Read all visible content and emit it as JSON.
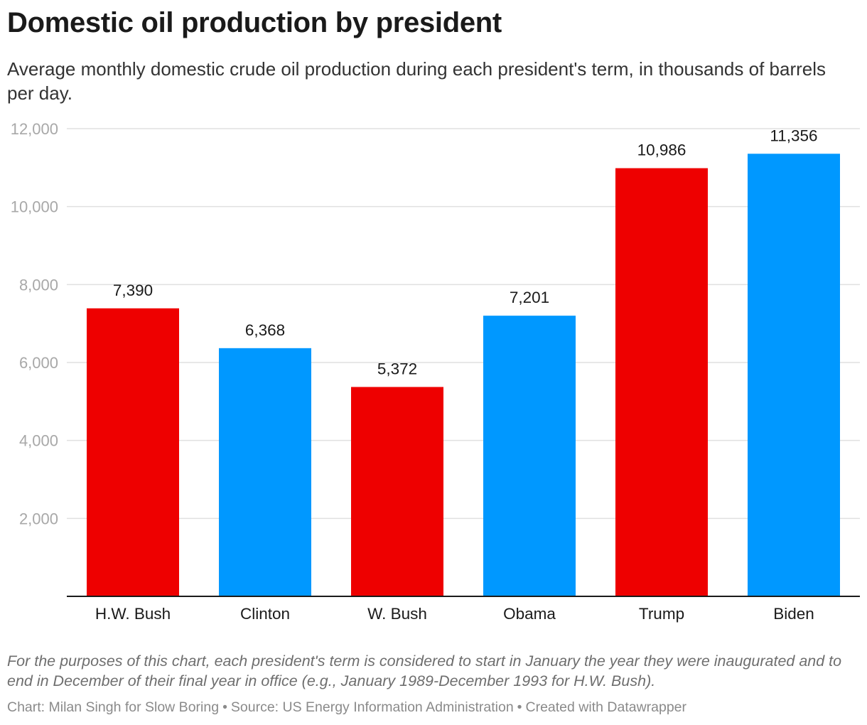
{
  "title": "Domestic oil production by president",
  "subtitle": "Average monthly domestic crude oil production during each president's term, in thousands of barrels per day.",
  "note": "For the purposes of this chart, each president's term is considered to start in January the year they were inaugurated and to end in December of their final year in office (e.g., January 1989-December 1993 for H.W. Bush).",
  "footer": {
    "credit": "Chart: Milan Singh for Slow Boring",
    "source": "Source: US Energy Information Administration",
    "tool": "Created with Datawrapper",
    "separator": "•"
  },
  "colors": {
    "republican": "#ee0000",
    "democrat": "#0098ff",
    "gridline": "#e0e0e0",
    "axis": "#1a1a1a"
  },
  "chart_data": {
    "type": "bar",
    "title": "Domestic oil production by president",
    "xlabel": "",
    "ylabel": "",
    "ylim": [
      0,
      12000
    ],
    "yticks": [
      2000,
      4000,
      6000,
      8000,
      10000,
      12000
    ],
    "ytick_labels": [
      "2,000",
      "4,000",
      "6,000",
      "8,000",
      "10,000",
      "12,000"
    ],
    "grid": true,
    "categories": [
      "H.W. Bush",
      "Clinton",
      "W. Bush",
      "Obama",
      "Trump",
      "Biden"
    ],
    "values": [
      7390,
      6368,
      5372,
      7201,
      10986,
      11356
    ],
    "value_labels": [
      "7,390",
      "6,368",
      "5,372",
      "7,201",
      "10,986",
      "11,356"
    ],
    "bar_colors": [
      "#ee0000",
      "#0098ff",
      "#ee0000",
      "#0098ff",
      "#ee0000",
      "#0098ff"
    ]
  }
}
